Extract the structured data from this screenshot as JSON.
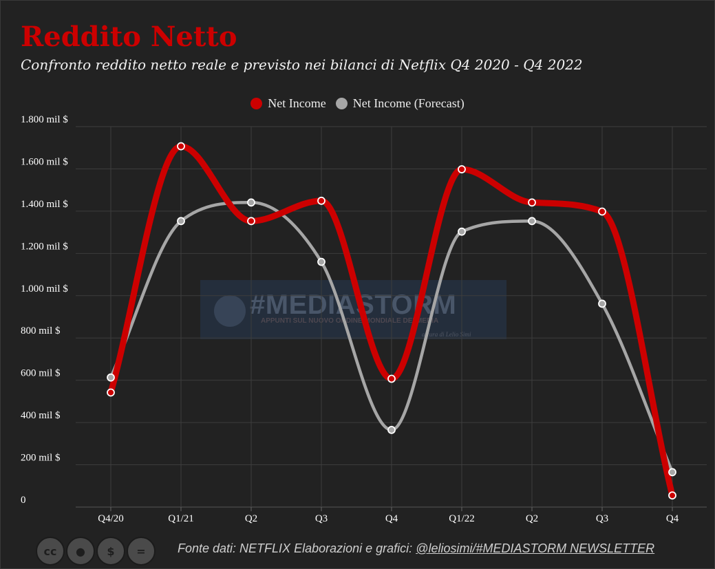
{
  "title": "Reddito Netto",
  "subtitle": "Confronto reddito netto reale e previsto nei bilanci di Netflix Q4 2020 - Q4 2022",
  "colors": {
    "background": "#222222",
    "net_income": "#cc0000",
    "forecast": "#a6a6a6",
    "title": "#cc0000"
  },
  "watermark": {
    "title": "#MEDIASTORM",
    "subtitle": "APPUNTI SUL NUOVO ORDINE MONDIALE DEI MEDIA",
    "author": "a cura di Lelio Simi"
  },
  "footer": {
    "source": "Fonte dati: NETFLIX Elaborazioni e grafici: ",
    "credit": "@leliosimi/#MEDIASTORM NEWSLETTER"
  },
  "license_icons": [
    "cc-icon",
    "by-icon",
    "nc-icon",
    "nd-icon"
  ],
  "chart_data": {
    "type": "line",
    "categories": [
      "Q4/20",
      "Q1/21",
      "Q2",
      "Q3",
      "Q4",
      "Q1/22",
      "Q2",
      "Q3",
      "Q4"
    ],
    "series": [
      {
        "name": "Net Income",
        "values": [
          542,
          1707,
          1353,
          1449,
          607,
          1598,
          1441,
          1398,
          55
        ]
      },
      {
        "name": "Net Income (Forecast)",
        "values": [
          613,
          1353,
          1441,
          1160,
          365,
          1303,
          1353,
          962,
          165
        ]
      }
    ],
    "yticks": [
      {
        "value": 0,
        "label": "0"
      },
      {
        "value": 200,
        "label": "200 mil $"
      },
      {
        "value": 400,
        "label": "400 mil $"
      },
      {
        "value": 600,
        "label": "600 mil $"
      },
      {
        "value": 800,
        "label": "800 mil $"
      },
      {
        "value": 1000,
        "label": "1.000 mil $"
      },
      {
        "value": 1200,
        "label": "1.200 mil $"
      },
      {
        "value": 1400,
        "label": "1.400 mil $"
      },
      {
        "value": 1600,
        "label": "1.600 mil $"
      },
      {
        "value": 1800,
        "label": "1.800 mil $"
      }
    ],
    "ylim": [
      0,
      1800
    ],
    "grid": true,
    "legend": "top-center"
  }
}
